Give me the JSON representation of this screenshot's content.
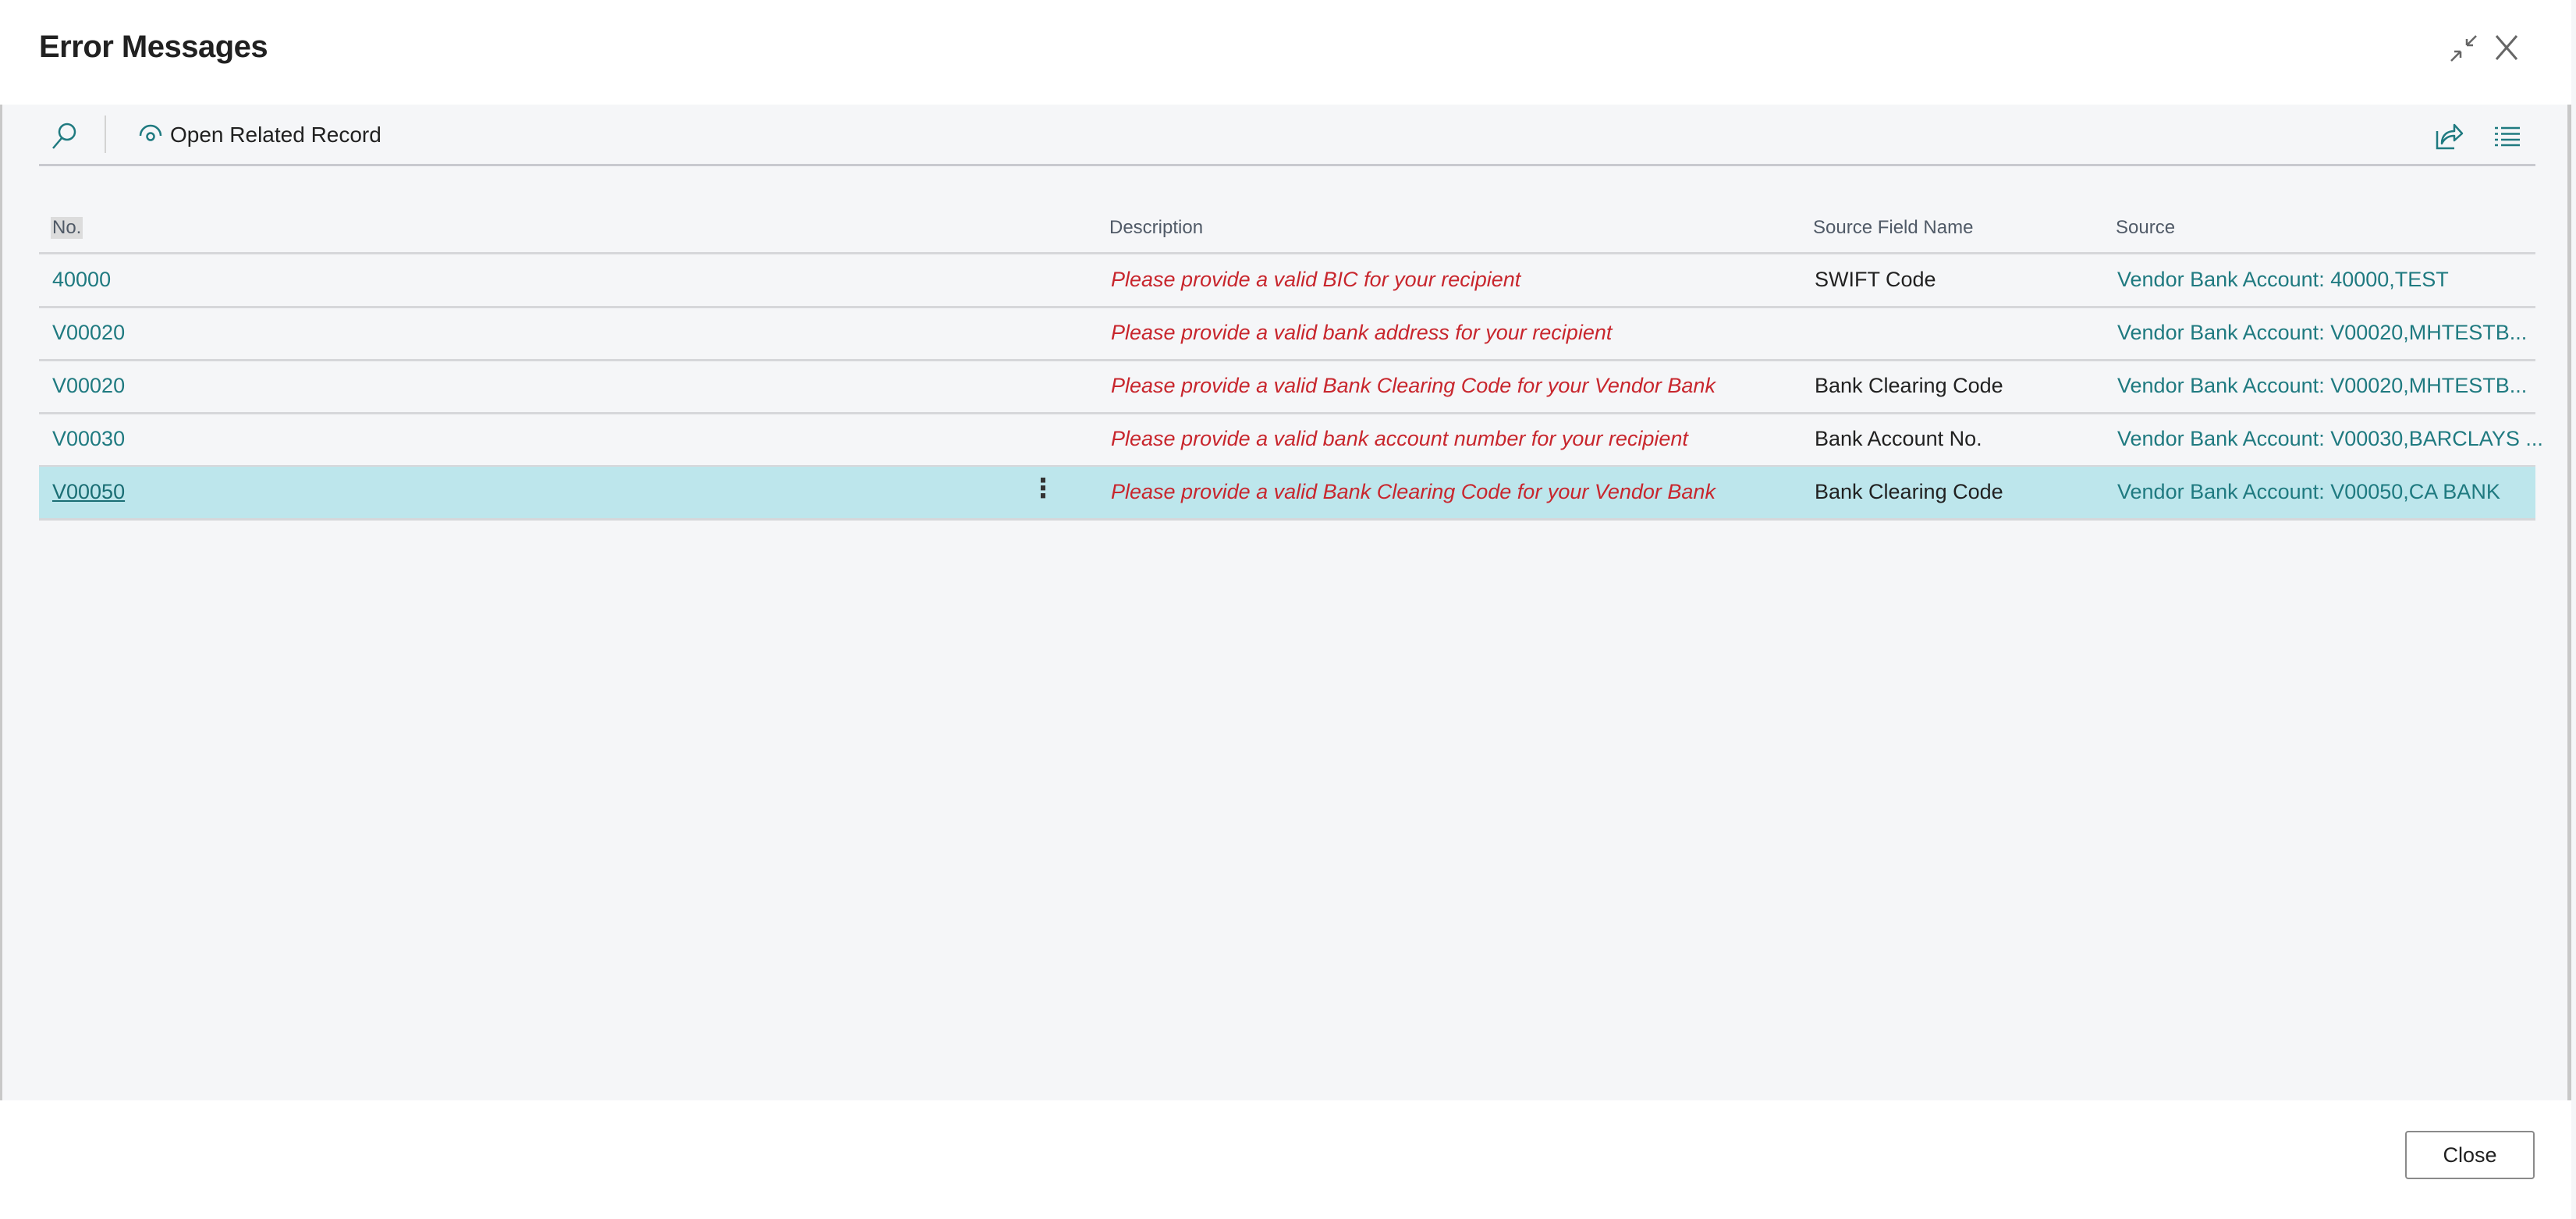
{
  "window": {
    "title": "Error Messages"
  },
  "toolbar": {
    "open_related_record": "Open Related Record"
  },
  "icons": {
    "search": "search-icon",
    "open_related": "eye-icon",
    "share": "share-icon",
    "list": "list-icon",
    "collapse": "collapse-icon",
    "close": "close-icon",
    "row_menu": "more-vertical-icon"
  },
  "colors": {
    "accent": "#1f7a80",
    "error_text": "#c8262d",
    "selected_row": "#bde6ec"
  },
  "table": {
    "columns": [
      "No.",
      "Description",
      "Source Field Name",
      "Source"
    ],
    "rows": [
      {
        "no": "40000",
        "description": "Please provide a valid BIC for your recipient",
        "field": "SWIFT Code",
        "source": "Vendor Bank Account: 40000,TEST"
      },
      {
        "no": "V00020",
        "description": "Please provide a valid bank address for your recipient",
        "field": "",
        "source": "Vendor Bank Account: V00020,MHTESTB..."
      },
      {
        "no": "V00020",
        "description": "Please provide a valid Bank Clearing Code for your Vendor Bank",
        "field": "Bank Clearing Code",
        "source": "Vendor Bank Account: V00020,MHTESTB..."
      },
      {
        "no": "V00030",
        "description": "Please provide a valid bank account number for your recipient",
        "field": "Bank Account No.",
        "source": "Vendor Bank Account: V00030,BARCLAYS ..."
      },
      {
        "no": "V00050",
        "description": "Please provide a valid Bank Clearing Code for your Vendor Bank",
        "field": "Bank Clearing Code",
        "source": "Vendor Bank Account: V00050,CA BANK",
        "selected": true
      }
    ],
    "row_menu_glyph": "⋮"
  },
  "footer": {
    "close_label": "Close"
  }
}
